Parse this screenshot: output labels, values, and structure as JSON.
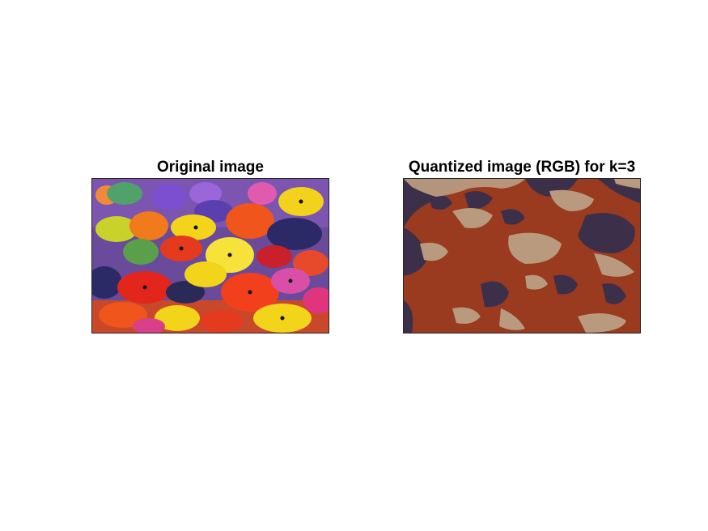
{
  "figure": {
    "background": "#ffffff",
    "panels": [
      {
        "title": "Original image",
        "kind": "photo",
        "description_colors": [
          "#5a3b8c",
          "#e43a1e",
          "#f3d41a",
          "#2c2a66",
          "#d94fa8",
          "#f07a1c",
          "#6ab04c"
        ]
      },
      {
        "title": "Quantized image (RGB) for k=3",
        "kind": "quantized",
        "palette": [
          "#3b2f4a",
          "#9a3a1f",
          "#b99a7e"
        ]
      }
    ]
  }
}
